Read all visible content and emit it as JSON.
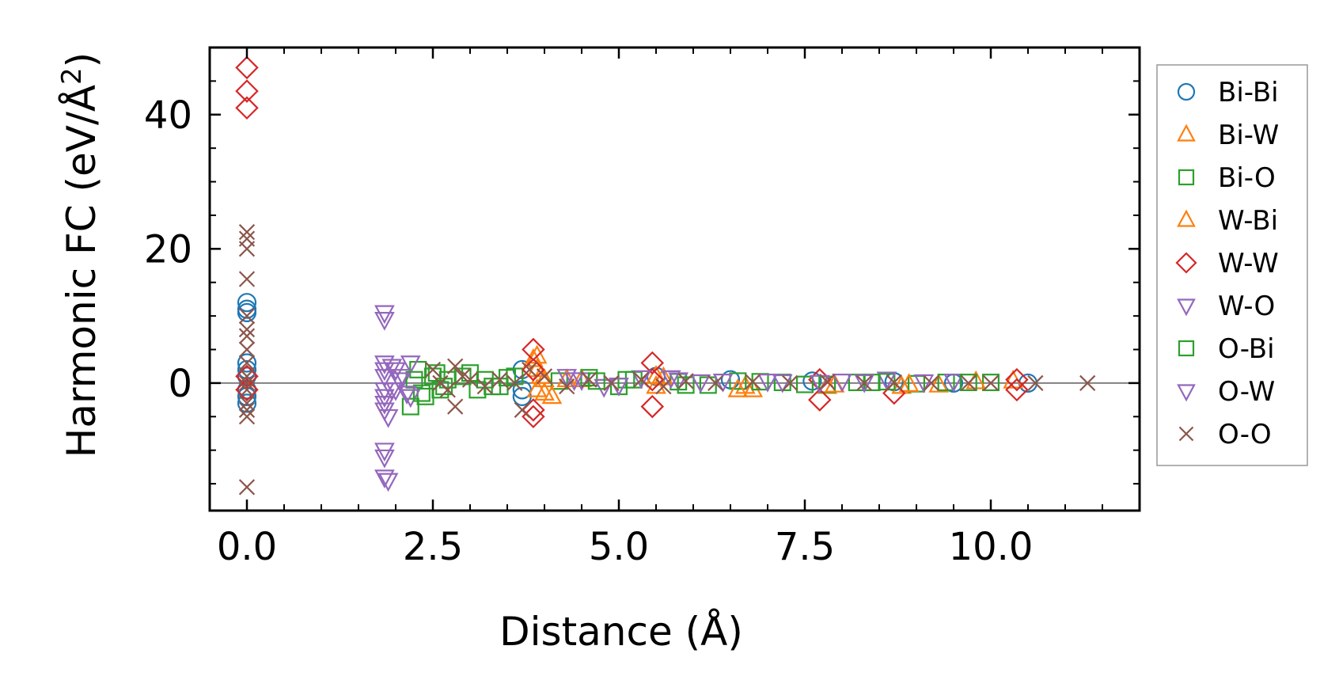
{
  "chart_data": {
    "type": "scatter",
    "xlabel": "Distance (Å)",
    "ylabel_main": "Harmonic FC (eV/Å",
    "ylabel_sup": "2",
    "ylabel_close": ")",
    "xlim": [
      -0.5,
      12.0
    ],
    "ylim": [
      -19,
      50
    ],
    "xticks": [
      0.0,
      2.5,
      5.0,
      7.5,
      10.0
    ],
    "xtick_labels": [
      "0.0",
      "2.5",
      "5.0",
      "7.5",
      "10.0"
    ],
    "yticks": [
      0,
      20,
      40
    ],
    "ytick_labels": [
      "0",
      "20",
      "40"
    ],
    "zero_line": true,
    "grid": false,
    "legend_position": "right",
    "series": [
      {
        "name": "Bi-Bi",
        "marker": "circle",
        "color": "#1f77b4",
        "points": [
          [
            0,
            12
          ],
          [
            0,
            11
          ],
          [
            0,
            10.5
          ],
          [
            0,
            3
          ],
          [
            0,
            2
          ],
          [
            0,
            1
          ],
          [
            0,
            -1
          ],
          [
            0,
            -2
          ],
          [
            0,
            -3
          ],
          [
            3.7,
            2
          ],
          [
            3.7,
            -1
          ],
          [
            3.7,
            -2
          ],
          [
            5.5,
            1
          ],
          [
            6.5,
            0.5
          ],
          [
            7.6,
            0.3
          ],
          [
            8.7,
            0.2
          ],
          [
            9.5,
            0
          ],
          [
            10.5,
            0
          ]
        ]
      },
      {
        "name": "Bi-W",
        "marker": "triangle-up",
        "color": "#ff7f0e",
        "points": [
          [
            3.9,
            4
          ],
          [
            3.9,
            2
          ],
          [
            3.9,
            -1
          ],
          [
            4.0,
            0.5
          ],
          [
            4.0,
            -1.5
          ],
          [
            4.5,
            0.5
          ],
          [
            5.5,
            1
          ],
          [
            5.5,
            -0.5
          ],
          [
            6.7,
            -0.5
          ],
          [
            6.8,
            -1
          ],
          [
            7.8,
            -0.5
          ],
          [
            8.8,
            -0.5
          ],
          [
            9.3,
            -0.3
          ],
          [
            10.3,
            0.3
          ]
        ]
      },
      {
        "name": "Bi-O",
        "marker": "square",
        "color": "#2ca02c",
        "points": [
          [
            2.2,
            -3.5
          ],
          [
            2.3,
            2
          ],
          [
            2.4,
            -2
          ],
          [
            2.5,
            1
          ],
          [
            2.6,
            -1
          ],
          [
            2.7,
            0.5
          ],
          [
            3.0,
            1.5
          ],
          [
            3.1,
            -1
          ],
          [
            3.2,
            0.5
          ],
          [
            3.4,
            -0.5
          ],
          [
            3.6,
            1
          ],
          [
            4.2,
            0.3
          ],
          [
            4.6,
            0.8
          ],
          [
            5.0,
            -0.5
          ],
          [
            5.2,
            0.5
          ],
          [
            5.8,
            0.2
          ],
          [
            6.2,
            -0.3
          ],
          [
            6.6,
            0.3
          ],
          [
            7.2,
            0.1
          ],
          [
            7.8,
            -0.2
          ],
          [
            8.2,
            0.1
          ],
          [
            8.6,
            0.2
          ],
          [
            9.0,
            -0.1
          ],
          [
            9.4,
            0.1
          ],
          [
            10.0,
            0.1
          ]
        ]
      },
      {
        "name": "W-Bi",
        "marker": "triangle-up",
        "color": "#ff7f0e",
        "points": [
          [
            3.85,
            3.5
          ],
          [
            3.95,
            1
          ],
          [
            4.1,
            -2
          ],
          [
            4.3,
            0.5
          ],
          [
            5.6,
            0.8
          ],
          [
            6.6,
            -1
          ],
          [
            7.9,
            -0.3
          ],
          [
            8.9,
            -0.2
          ],
          [
            9.8,
            0.2
          ]
        ]
      },
      {
        "name": "W-W",
        "marker": "diamond",
        "color": "#d62728",
        "points": [
          [
            0,
            47
          ],
          [
            0,
            43.5
          ],
          [
            0,
            41
          ],
          [
            0,
            1
          ],
          [
            0,
            -1
          ],
          [
            3.85,
            5
          ],
          [
            3.85,
            2
          ],
          [
            3.85,
            -4
          ],
          [
            3.85,
            -5
          ],
          [
            5.45,
            3
          ],
          [
            5.45,
            0.5
          ],
          [
            5.45,
            -3.5
          ],
          [
            7.7,
            0.5
          ],
          [
            7.7,
            -2.5
          ],
          [
            8.7,
            -1.5
          ],
          [
            10.35,
            0.5
          ],
          [
            10.35,
            -1
          ]
        ]
      },
      {
        "name": "W-O",
        "marker": "triangle-down",
        "color": "#9467bd",
        "points": [
          [
            1.85,
            10.5
          ],
          [
            1.85,
            9.5
          ],
          [
            1.85,
            3
          ],
          [
            1.85,
            2
          ],
          [
            1.85,
            1
          ],
          [
            1.85,
            -1
          ],
          [
            1.85,
            -2
          ],
          [
            1.85,
            -3
          ],
          [
            1.85,
            -4
          ],
          [
            1.9,
            -5
          ],
          [
            1.85,
            -10
          ],
          [
            1.85,
            -11
          ],
          [
            1.85,
            -14
          ],
          [
            1.9,
            -14.5
          ],
          [
            2.0,
            2
          ],
          [
            2.0,
            -1
          ],
          [
            2.1,
            1
          ],
          [
            2.2,
            3
          ],
          [
            2.2,
            -2
          ],
          [
            4.3,
            1
          ],
          [
            4.5,
            0.5
          ],
          [
            4.8,
            -0.5
          ],
          [
            5.3,
            0.8
          ],
          [
            5.8,
            0.5
          ],
          [
            6.4,
            0.3
          ],
          [
            7.2,
            0.2
          ],
          [
            8.0,
            0.3
          ],
          [
            8.6,
            0.6
          ],
          [
            9.5,
            0.3
          ]
        ]
      },
      {
        "name": "O-Bi",
        "marker": "square",
        "color": "#2ca02c",
        "points": [
          [
            2.25,
            0.5
          ],
          [
            2.35,
            -1.5
          ],
          [
            2.55,
            1.5
          ],
          [
            2.65,
            -0.5
          ],
          [
            2.9,
            1
          ],
          [
            3.3,
            -0.5
          ],
          [
            3.5,
            0.8
          ],
          [
            4.7,
            0.3
          ],
          [
            5.1,
            0.5
          ],
          [
            5.9,
            -0.3
          ],
          [
            6.9,
            0.2
          ],
          [
            7.5,
            -0.2
          ],
          [
            8.4,
            0.1
          ],
          [
            9.7,
            0.1
          ]
        ]
      },
      {
        "name": "O-W",
        "marker": "triangle-down",
        "color": "#9467bd",
        "points": [
          [
            1.95,
            2.5
          ],
          [
            1.95,
            -1
          ],
          [
            2.05,
            0.5
          ],
          [
            2.15,
            -1.5
          ],
          [
            4.4,
            0.5
          ],
          [
            5.0,
            -0.3
          ],
          [
            5.7,
            0.8
          ],
          [
            6.1,
            0.2
          ],
          [
            7.0,
            0.3
          ],
          [
            7.7,
            0.1
          ],
          [
            8.3,
            0.2
          ],
          [
            9.1,
            0.2
          ]
        ]
      },
      {
        "name": "O-O",
        "marker": "x",
        "color": "#8c564b",
        "points": [
          [
            0,
            22.5
          ],
          [
            0,
            21.5
          ],
          [
            0,
            20
          ],
          [
            0,
            15.5
          ],
          [
            0,
            10
          ],
          [
            0,
            8
          ],
          [
            0,
            7
          ],
          [
            0,
            5
          ],
          [
            0,
            3
          ],
          [
            0,
            1
          ],
          [
            0,
            0
          ],
          [
            0,
            -1
          ],
          [
            0,
            -3
          ],
          [
            0,
            -4
          ],
          [
            0,
            -5
          ],
          [
            0,
            -15.5
          ],
          [
            2.5,
            2
          ],
          [
            2.6,
            0
          ],
          [
            2.7,
            -1
          ],
          [
            2.8,
            2.5
          ],
          [
            2.8,
            -3.5
          ],
          [
            2.9,
            1
          ],
          [
            3.0,
            0.5
          ],
          [
            3.2,
            -0.5
          ],
          [
            3.4,
            0.5
          ],
          [
            3.6,
            0
          ],
          [
            3.7,
            -4
          ],
          [
            3.8,
            2
          ],
          [
            4.0,
            1
          ],
          [
            4.3,
            -0.5
          ],
          [
            4.6,
            0.5
          ],
          [
            4.9,
            0
          ],
          [
            5.3,
            0.5
          ],
          [
            5.6,
            -0.5
          ],
          [
            5.9,
            0.3
          ],
          [
            6.3,
            0
          ],
          [
            6.8,
            0.2
          ],
          [
            7.3,
            0
          ],
          [
            7.8,
            0.2
          ],
          [
            8.3,
            0
          ],
          [
            8.7,
            0.1
          ],
          [
            9.2,
            0
          ],
          [
            9.7,
            0
          ],
          [
            10.0,
            0
          ],
          [
            10.6,
            0
          ],
          [
            11.3,
            0
          ]
        ]
      }
    ]
  }
}
